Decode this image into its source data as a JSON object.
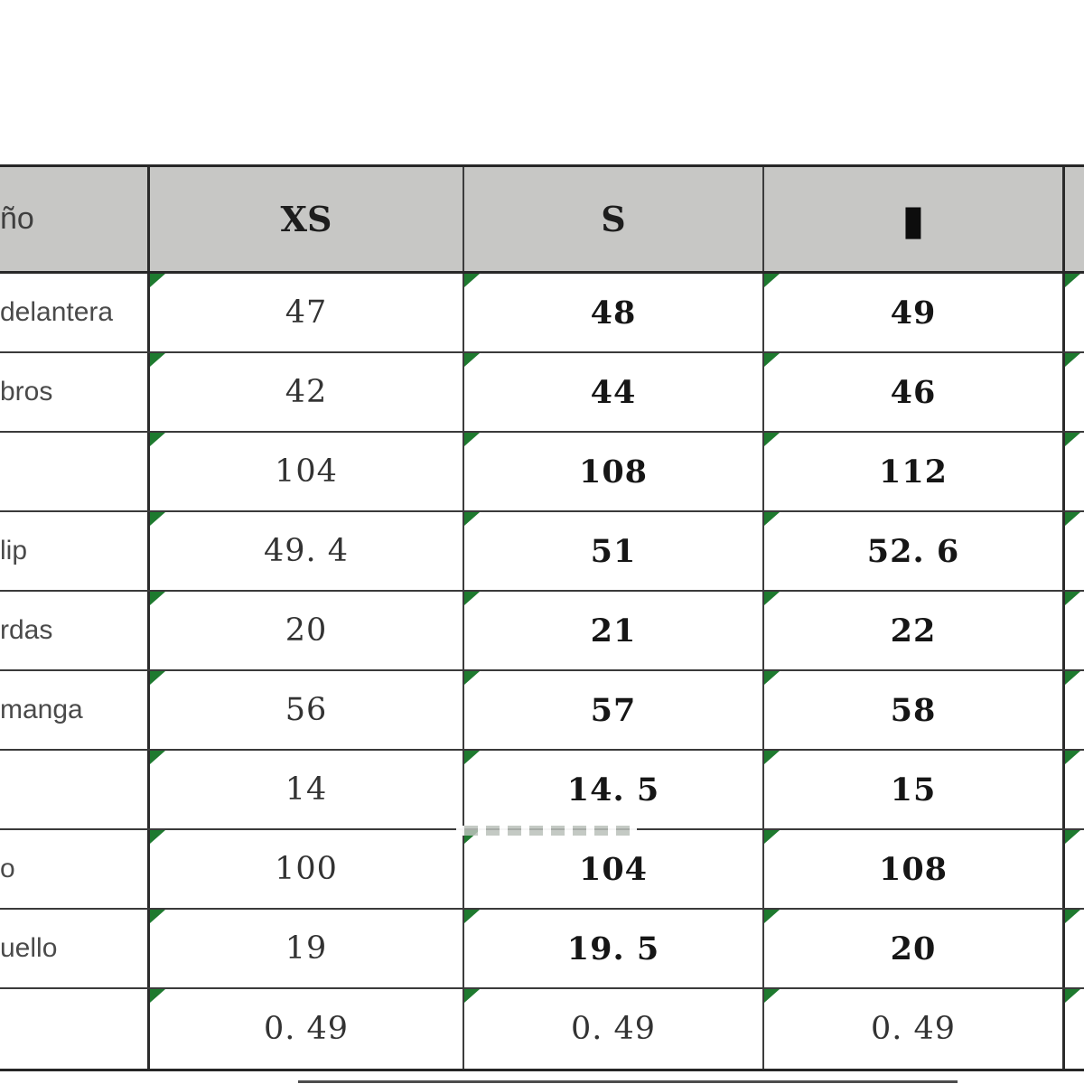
{
  "table": {
    "header": {
      "label_fragment": "ño",
      "columns": [
        "XS",
        "S",
        "▮"
      ]
    },
    "rows": [
      {
        "label": "delantera",
        "values": [
          "47",
          "48",
          "49"
        ]
      },
      {
        "label": "bros",
        "values": [
          "42",
          "44",
          "46"
        ]
      },
      {
        "label": "",
        "values": [
          "104",
          "108",
          "112"
        ]
      },
      {
        "label": "lip",
        "values": [
          "49. 4",
          "51",
          "52. 6"
        ]
      },
      {
        "label": "rdas",
        "values": [
          "20",
          "21",
          "22"
        ]
      },
      {
        "label": "manga",
        "values": [
          "56",
          "57",
          "58"
        ]
      },
      {
        "label": "",
        "values": [
          "14",
          "14. 5",
          "15"
        ]
      },
      {
        "label": "o",
        "values": [
          "100",
          "104",
          "108"
        ]
      },
      {
        "label": "uello",
        "values": [
          "19",
          "19. 5",
          "20"
        ]
      },
      {
        "label": "",
        "values": [
          "0. 49",
          "0. 49",
          "0. 49"
        ]
      }
    ],
    "colors": {
      "header_background": "#c7c7c5",
      "border": "#2d2d2d",
      "cell_marker_green": "#1e7a2f",
      "label_text": "#4a4a4a",
      "value_text": "#2e2e2e"
    }
  }
}
